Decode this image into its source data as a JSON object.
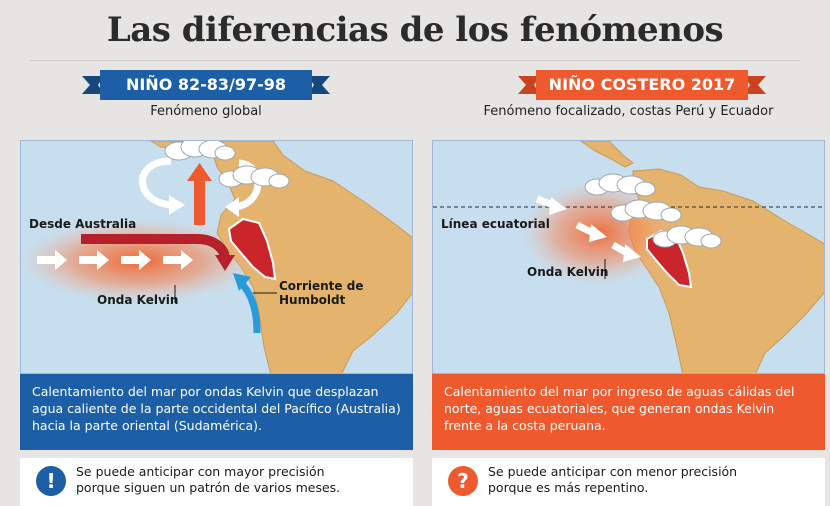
{
  "title": "Las diferencias de los fenómenos",
  "left": {
    "ribbon_label": "NIÑO 82-83/97-98",
    "ribbon_color": "#1d5fa6",
    "subtitle": "Fenómeno global",
    "labels": {
      "from_australia": "Desde Australia",
      "kelvin_wave": "Onda Kelvin",
      "humboldt_line1": "Corriente de",
      "humboldt_line2": "Humboldt"
    },
    "description": "Calentamiento del mar por ondas Kelvin que desplazan agua caliente de la parte occidental del Pacífico (Australia) hacia la parte oriental (Sudamérica).",
    "note_icon": "!",
    "note_icon_name": "exclamation-icon",
    "note_line1": "Se puede anticipar con mayor precisión",
    "note_line2": "porque siguen un patrón de varios meses."
  },
  "right": {
    "ribbon_label": "NIÑO COSTERO 2017",
    "ribbon_color": "#ee5a2e",
    "subtitle": "Fenómeno focalizado, costas Perú y Ecuador",
    "labels": {
      "equator_line": "Línea ecuatorial",
      "kelvin_wave": "Onda Kelvin"
    },
    "description": "Calentamiento del mar por ingreso de aguas cálidas del norte, aguas ecuatoriales, que generan ondas Kelvin frente a la costa peruana.",
    "note_icon": "?",
    "note_icon_name": "question-icon",
    "note_line1": "Se puede anticipar con menor precisión",
    "note_line2": "porque es más repentino."
  },
  "colors": {
    "ocean": "#c7deef",
    "land": "#e4b46f",
    "peru": "#c9252b",
    "blue": "#1d5fa6",
    "orange": "#ee5a2e",
    "current": "#2a9ad9"
  }
}
